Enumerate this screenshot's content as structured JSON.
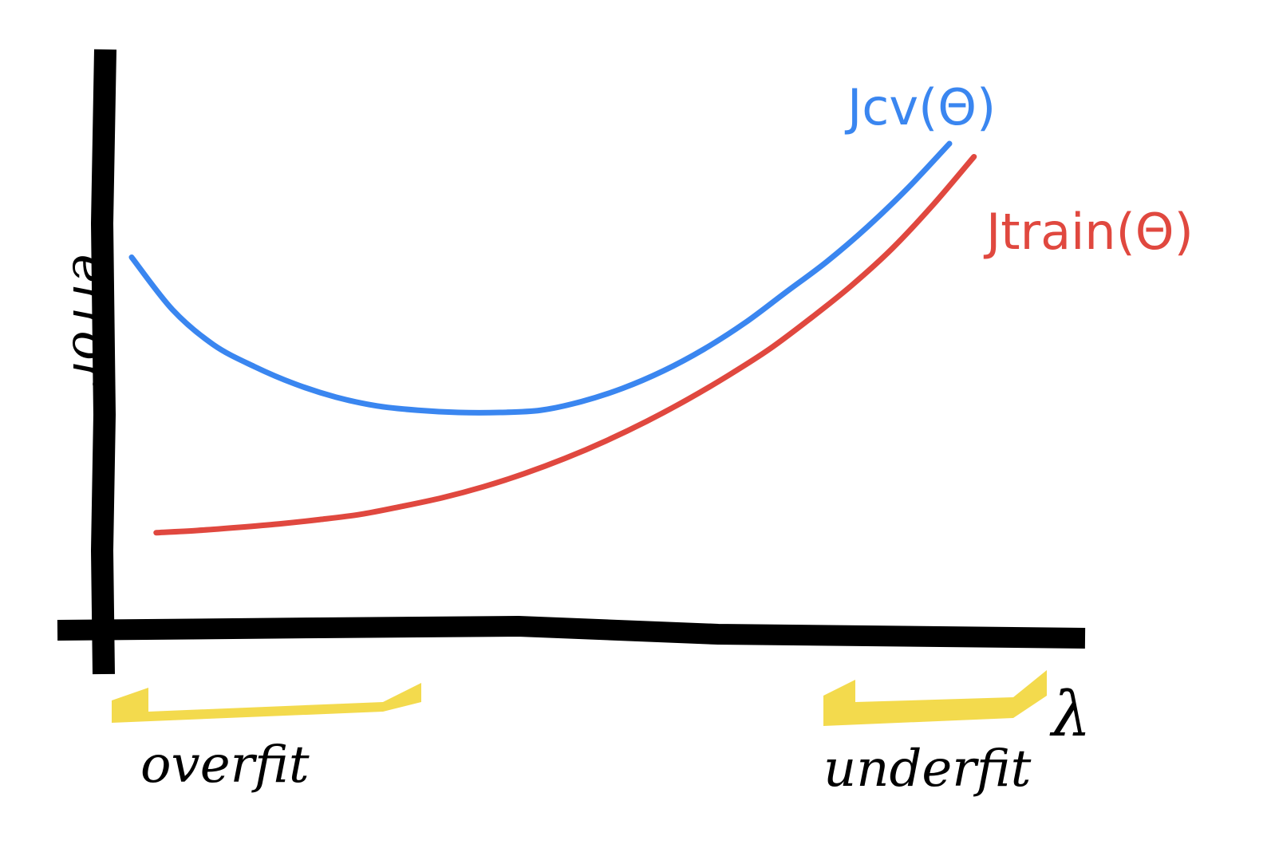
{
  "chart_data": {
    "type": "line",
    "xlabel": "λ",
    "ylabel": "error",
    "grid": false,
    "x_region_labels": [
      "overfit",
      "underfit"
    ],
    "series": [
      {
        "name": "Jcv(Θ)",
        "color": "#3a86f0",
        "x": [
          0,
          5,
          10,
          15,
          20,
          25,
          30,
          35,
          40,
          45,
          50,
          55,
          60,
          65,
          70,
          75,
          80,
          85,
          90,
          95,
          100
        ],
        "y": [
          74,
          62,
          54,
          49,
          45,
          42,
          40,
          39,
          38.5,
          38.5,
          39,
          41,
          44,
          48,
          53,
          59,
          66,
          73,
          81,
          90,
          100
        ]
      },
      {
        "name": "Jtrain(Θ)",
        "color": "#e0483f",
        "x": [
          3,
          8,
          13,
          18,
          23,
          28,
          33,
          38,
          43,
          48,
          53,
          58,
          63,
          68,
          73,
          78,
          83,
          88,
          93,
          98,
          103
        ],
        "y": [
          11,
          11.5,
          12.2,
          13,
          14,
          15.2,
          17,
          19,
          21.5,
          24.5,
          28,
          32,
          36.5,
          41.5,
          47,
          53,
          60,
          67.5,
          76,
          86,
          97
        ]
      }
    ]
  }
}
